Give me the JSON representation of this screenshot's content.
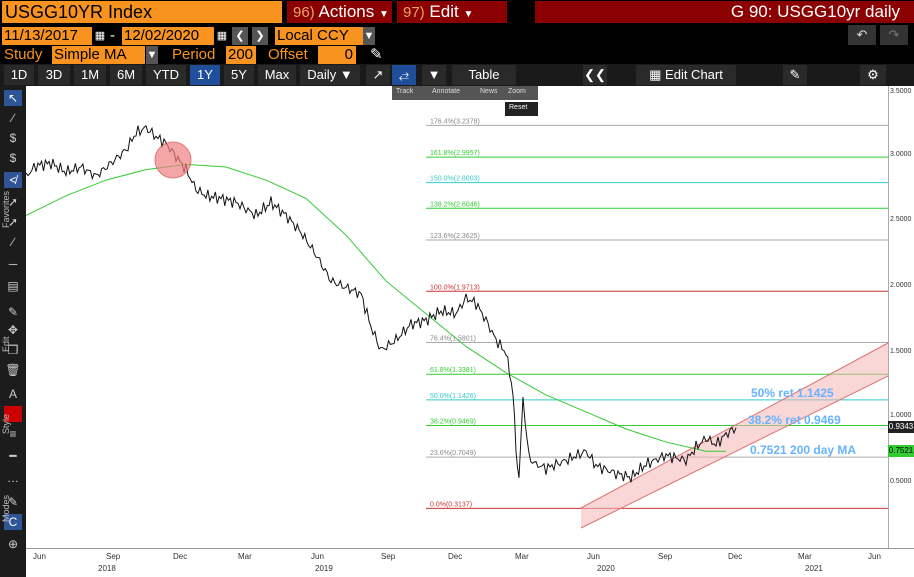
{
  "header": {
    "ticker": "USGG10YR Index",
    "actions_num": "96)",
    "actions_label": "Actions",
    "edit_num": "97)",
    "edit_label": "Edit",
    "title": "G 90: USGG10yr daily"
  },
  "dates": {
    "start": "11/13/2017",
    "separator": "-",
    "end": "12/02/2020",
    "currency": "Local CCY"
  },
  "study": {
    "label": "Study",
    "value": "Simple MA",
    "period_label": "Period",
    "period_value": "200",
    "offset_label": "Offset",
    "offset_value": "0"
  },
  "toolbar": {
    "ranges": [
      "1D",
      "3D",
      "1M",
      "6M",
      "YTD",
      "1Y",
      "5Y",
      "Max"
    ],
    "active_range": "1Y",
    "frequency": "Daily",
    "table_label": "Table",
    "edit_chart_label": "Edit Chart"
  },
  "mini_toolbar": {
    "track": "Track",
    "annotate": "Annotate",
    "news": "News",
    "zoom": "Zoom",
    "reset": "Reset"
  },
  "side_labels": {
    "favorites": "Favorites",
    "edit": "Edit",
    "style": "Style",
    "modes": "Modes"
  },
  "fib_levels": [
    {
      "label": "176.4%(3.2378)",
      "value": 3.2378,
      "color": "#aaaaaa"
    },
    {
      "label": "161.8%(2.9957)",
      "value": 2.9957,
      "color": "#33cc33"
    },
    {
      "label": "150.0%(2.8003)",
      "value": 2.8003,
      "color": "#33cccc"
    },
    {
      "label": "138.2%(2.6046)",
      "value": 2.6046,
      "color": "#33cc33"
    },
    {
      "label": "123.6%(2.3625)",
      "value": 2.3625,
      "color": "#aaaaaa"
    },
    {
      "label": "100.0%(1.9713)",
      "value": 1.9713,
      "color": "#cc3333"
    },
    {
      "label": "76.4%(1.5801)",
      "value": 1.5801,
      "color": "#aaaaaa"
    },
    {
      "label": "61.8%(1.3381)",
      "value": 1.3381,
      "color": "#33cc33"
    },
    {
      "label": "50.0%(1.1426)",
      "value": 1.1426,
      "color": "#33cccc"
    },
    {
      "label": "38.2%(0.9469)",
      "value": 0.9469,
      "color": "#33cc33"
    },
    {
      "label": "23.6%(0.7049)",
      "value": 0.7049,
      "color": "#aaaaaa"
    },
    {
      "label": "0.0%(0.3137)",
      "value": 0.3137,
      "color": "#cc3333"
    }
  ],
  "annotations": {
    "ret50": "50% ret 1.1425",
    "ret382": "38.2% ret 0.9469",
    "ma": "0.7521 200 day MA"
  },
  "y_axis": {
    "ticks": [
      "3.5000",
      "3.0000",
      "2.5000",
      "2.0000",
      "1.5000",
      "1.0000",
      "0.5000"
    ],
    "last_price": "0.9343",
    "ma_value": "0.7521",
    "last_price_color": "#ffffff",
    "ma_color": "#33cc33"
  },
  "x_axis": {
    "months": [
      "Jun",
      "Sep",
      "Dec",
      "Mar",
      "Jun",
      "Sep",
      "Dec",
      "Mar",
      "Jun",
      "Sep",
      "Dec",
      "Mar",
      "Jun"
    ],
    "years": [
      "2018",
      "2019",
      "2020",
      "2021"
    ]
  },
  "chart_data": {
    "type": "line",
    "series": [
      {
        "values": [
          [
            0,
            2.85
          ],
          [
            10,
            2.93
          ],
          [
            25,
            2.95
          ],
          [
            40,
            2.88
          ],
          [
            55,
            2.92
          ],
          [
            70,
            2.85
          ],
          [
            85,
            2.95
          ],
          [
            100,
            3.05
          ],
          [
            110,
            3.18
          ],
          [
            120,
            3.22
          ],
          [
            130,
            3.15
          ],
          [
            140,
            3.1
          ],
          [
            150,
            3.0
          ],
          [
            160,
            2.9
          ],
          [
            170,
            2.75
          ],
          [
            180,
            2.7
          ],
          [
            195,
            2.68
          ],
          [
            210,
            2.65
          ],
          [
            230,
            2.55
          ],
          [
            245,
            2.65
          ],
          [
            260,
            2.55
          ],
          [
            275,
            2.42
          ],
          [
            290,
            2.25
          ],
          [
            305,
            2.05
          ],
          [
            320,
            2.0
          ],
          [
            335,
            1.95
          ],
          [
            345,
            1.7
          ],
          [
            355,
            1.52
          ],
          [
            370,
            1.6
          ],
          [
            385,
            1.72
          ],
          [
            400,
            1.75
          ],
          [
            415,
            1.82
          ],
          [
            430,
            1.8
          ],
          [
            440,
            1.92
          ],
          [
            450,
            1.88
          ],
          [
            460,
            1.75
          ],
          [
            470,
            1.6
          ],
          [
            480,
            1.5
          ],
          [
            487,
            1.2
          ],
          [
            490,
            0.75
          ],
          [
            493,
            0.55
          ],
          [
            497,
            1.15
          ],
          [
            503,
            0.7
          ],
          [
            510,
            0.65
          ],
          [
            520,
            0.62
          ],
          [
            540,
            0.68
          ],
          [
            560,
            0.75
          ],
          [
            570,
            0.64
          ],
          [
            590,
            0.58
          ],
          [
            605,
            0.55
          ],
          [
            620,
            0.65
          ],
          [
            640,
            0.72
          ],
          [
            660,
            0.68
          ],
          [
            670,
            0.78
          ],
          [
            680,
            0.85
          ],
          [
            690,
            0.8
          ],
          [
            700,
            0.88
          ],
          [
            710,
            0.93
          ]
        ]
      },
      {
        "values": [
          [
            0,
            2.55
          ],
          [
            40,
            2.7
          ],
          [
            80,
            2.82
          ],
          [
            120,
            2.9
          ],
          [
            160,
            2.94
          ],
          [
            200,
            2.92
          ],
          [
            240,
            2.82
          ],
          [
            280,
            2.68
          ],
          [
            320,
            2.4
          ],
          [
            360,
            2.05
          ],
          [
            400,
            1.8
          ],
          [
            440,
            1.55
          ],
          [
            480,
            1.35
          ],
          [
            520,
            1.18
          ],
          [
            560,
            1.05
          ],
          [
            600,
            0.92
          ],
          [
            640,
            0.82
          ],
          [
            680,
            0.75
          ],
          [
            700,
            0.75
          ]
        ]
      }
    ]
  }
}
